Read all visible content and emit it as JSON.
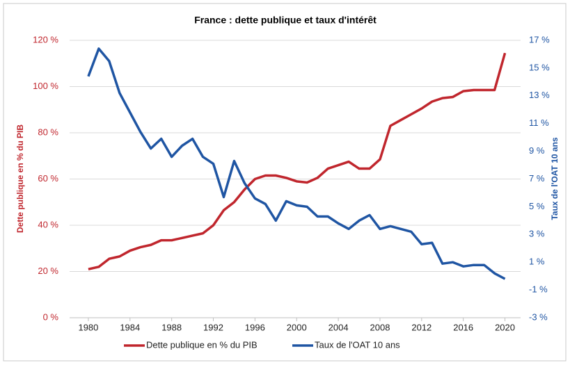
{
  "chart_data": {
    "type": "line",
    "title": "France : dette publique et taux d'intérêt",
    "y_label": "Dette publique en % du PIB",
    "y2_label": "Taux de l'OAT 10 ans",
    "x": [
      1980,
      1981,
      1982,
      1983,
      1984,
      1985,
      1986,
      1987,
      1988,
      1989,
      1990,
      1991,
      1992,
      1993,
      1994,
      1995,
      1996,
      1997,
      1998,
      1999,
      2000,
      2001,
      2002,
      2003,
      2004,
      2005,
      2006,
      2007,
      2008,
      2009,
      2010,
      2011,
      2012,
      2013,
      2014,
      2015,
      2016,
      2017,
      2018,
      2019,
      2020
    ],
    "xlim": [
      1978.2,
      2021.5
    ],
    "xticks": [
      1980,
      1984,
      1988,
      1992,
      1996,
      2000,
      2004,
      2008,
      2012,
      2016,
      2020
    ],
    "ylim": [
      0,
      120
    ],
    "yticks": [
      {
        "value": 0,
        "label": "0 %"
      },
      {
        "value": 20,
        "label": "20 %"
      },
      {
        "value": 40,
        "label": "40 %"
      },
      {
        "value": 60,
        "label": "60 %"
      },
      {
        "value": 80,
        "label": "80 %"
      },
      {
        "value": 100,
        "label": "100 %"
      },
      {
        "value": 120,
        "label": "120 %"
      }
    ],
    "y2lim": [
      -3,
      17
    ],
    "y2ticks": [
      {
        "value": -3,
        "label": "-3 %"
      },
      {
        "value": -1,
        "label": "-1 %"
      },
      {
        "value": 1,
        "label": "1 %"
      },
      {
        "value": 3,
        "label": "3 %"
      },
      {
        "value": 5,
        "label": "5 %"
      },
      {
        "value": 7,
        "label": "7 %"
      },
      {
        "value": 9,
        "label": "9 %"
      },
      {
        "value": 11,
        "label": "11 %"
      },
      {
        "value": 13,
        "label": "13 %"
      },
      {
        "value": 15,
        "label": "15 %"
      },
      {
        "value": 17,
        "label": "17 %"
      }
    ],
    "grid": true,
    "legend": "bottom",
    "series": [
      {
        "name": "Dette publique en % du PIB",
        "color": "#c0262d",
        "axis": "y",
        "values": [
          21,
          22,
          25.5,
          26.5,
          29,
          30.5,
          31.5,
          33.5,
          33.5,
          34.5,
          35.5,
          36.5,
          40,
          46.5,
          50,
          55.5,
          60,
          61.5,
          61.5,
          60.5,
          59,
          58.5,
          60.5,
          64.5,
          66,
          67.5,
          64.5,
          64.5,
          68.5,
          83,
          85.5,
          88,
          90.5,
          93.5,
          95,
          95.5,
          98,
          98.5,
          98.5,
          98.5,
          114.5
        ]
      },
      {
        "name": "Taux de l'OAT 10 ans",
        "color": "#1f55a3",
        "axis": "y2",
        "values": [
          14.4,
          16.4,
          15.5,
          13.2,
          11.8,
          10.4,
          9.2,
          9.9,
          8.6,
          9.4,
          9.9,
          8.6,
          8.1,
          5.7,
          8.3,
          6.7,
          5.6,
          5.2,
          4.0,
          5.4,
          5.1,
          5.0,
          4.3,
          4.3,
          3.8,
          3.4,
          4.0,
          4.4,
          3.4,
          3.6,
          3.4,
          3.2,
          2.3,
          2.4,
          0.9,
          1.0,
          0.7,
          0.8,
          0.8,
          0.2,
          -0.2
        ]
      }
    ]
  }
}
